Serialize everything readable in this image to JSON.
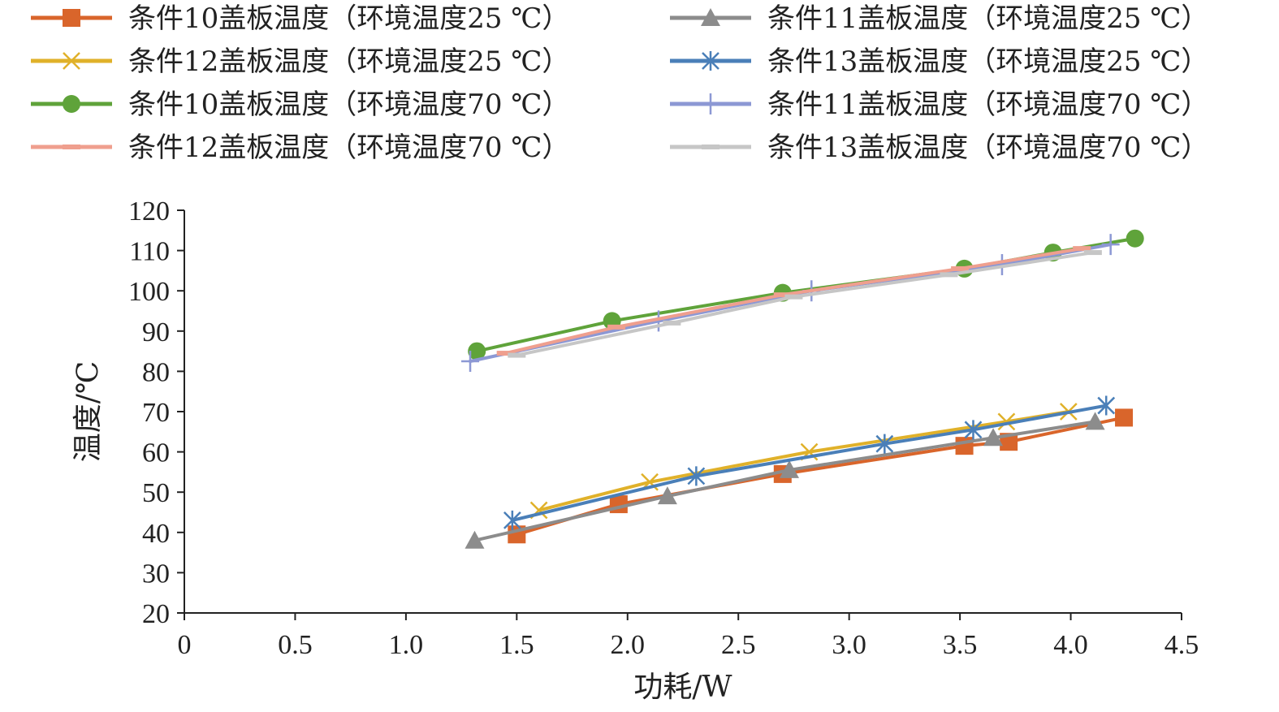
{
  "chart_data": {
    "type": "line",
    "title": "",
    "xlabel": "功耗/W",
    "ylabel": "温度/℃",
    "xlim": [
      0,
      4.5
    ],
    "ylim": [
      20,
      120
    ],
    "xticks": [
      "0",
      "0.5",
      "1.0",
      "1.5",
      "2.0",
      "2.5",
      "3.0",
      "3.5",
      "4.0",
      "4.5"
    ],
    "yticks": [
      "20",
      "30",
      "40",
      "50",
      "60",
      "70",
      "80",
      "90",
      "100",
      "110",
      "120"
    ],
    "grid": false,
    "legend_position": "top",
    "series": [
      {
        "name": "条件10盖板温度（环境温度25 ℃）",
        "color": "#d9652b",
        "marker": "square",
        "x": [
          1.5,
          1.96,
          2.7,
          3.52,
          3.72,
          4.24
        ],
        "y": [
          39.5,
          47,
          54.5,
          61.5,
          62.5,
          68.5
        ]
      },
      {
        "name": "条件11盖板温度（环境温度25 ℃）",
        "color": "#8c8c8c",
        "marker": "triangle",
        "x": [
          1.31,
          2.18,
          2.73,
          3.65,
          4.11
        ],
        "y": [
          38,
          49,
          55.5,
          63.5,
          67.5
        ]
      },
      {
        "name": "条件12盖板温度（环境温度25 ℃）",
        "color": "#e0b12a",
        "marker": "x",
        "x": [
          1.6,
          2.1,
          2.82,
          3.71,
          3.99
        ],
        "y": [
          45.5,
          52.5,
          60,
          67.5,
          70
        ]
      },
      {
        "name": "条件13盖板温度（环境温度25 ℃）",
        "color": "#4a7fb8",
        "marker": "star",
        "x": [
          1.48,
          2.31,
          3.16,
          3.56,
          4.16
        ],
        "y": [
          43,
          54,
          62,
          65.5,
          71.5
        ]
      },
      {
        "name": "条件10盖板温度（环境温度70 ℃）",
        "color": "#5fa33a",
        "marker": "circle",
        "x": [
          1.32,
          1.93,
          2.7,
          3.52,
          3.92,
          4.29
        ],
        "y": [
          85,
          92.5,
          99.5,
          105.5,
          109.5,
          113
        ]
      },
      {
        "name": "条件11盖板温度（环境温度70 ℃）",
        "color": "#8c98d4",
        "marker": "plus",
        "x": [
          1.29,
          2.14,
          2.83,
          3.69,
          4.18
        ],
        "y": [
          82.5,
          92.5,
          100,
          106.5,
          111.5
        ]
      },
      {
        "name": "条件12盖板温度（环境温度70 ℃）",
        "color": "#ef9f8e",
        "marker": "dash",
        "x": [
          1.45,
          1.95,
          2.7,
          3.5,
          4.05
        ],
        "y": [
          84.5,
          91,
          99,
          105.5,
          110.5
        ]
      },
      {
        "name": "条件13盖板温度（环境温度70 ℃）",
        "color": "#c6c6c6",
        "marker": "dash",
        "x": [
          1.5,
          2.2,
          2.75,
          3.45,
          4.1
        ],
        "y": [
          84,
          92,
          98.5,
          104,
          109.5
        ]
      }
    ]
  }
}
